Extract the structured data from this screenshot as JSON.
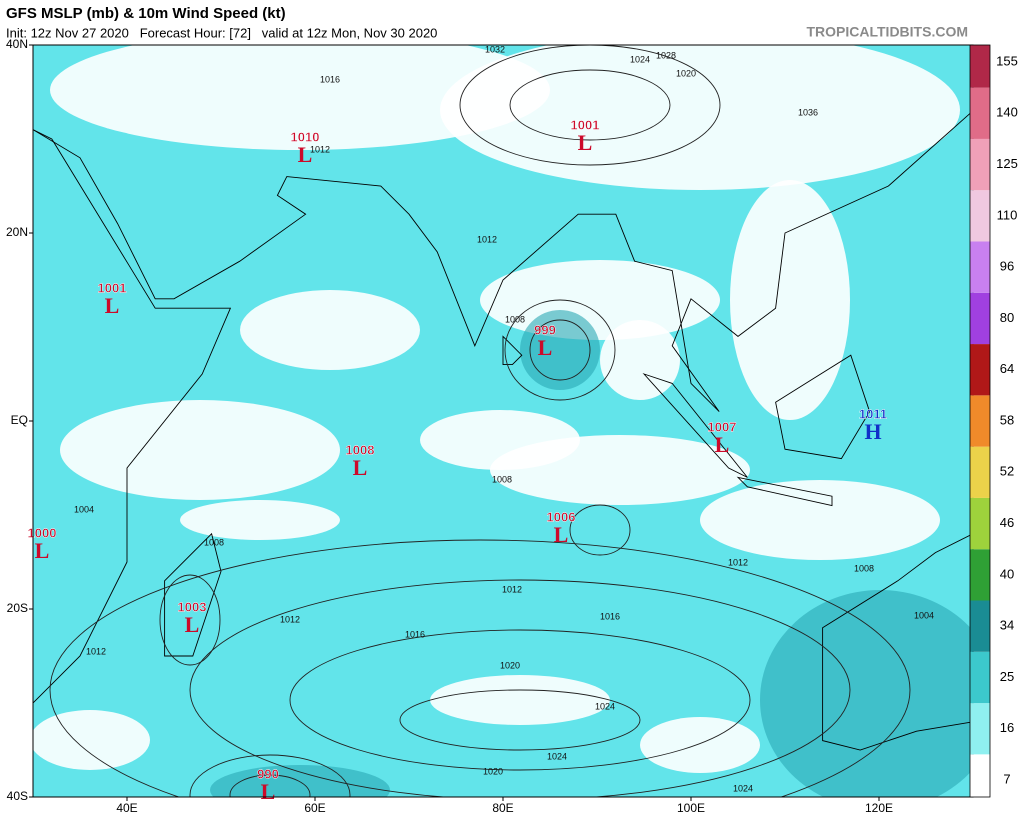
{
  "chart_data": {
    "type": "map",
    "title": "GFS MSLP (mb) & 10m Wind Speed (kt)",
    "subtitle": "Init: 12z Nov 27 2020   Forecast Hour: [72]   valid at 12z Mon, Nov 30 2020",
    "source": "TROPICALTIDBITS.COM",
    "xlim": [
      30,
      130
    ],
    "ylim": [
      -40,
      40
    ],
    "xticks": [
      {
        "value": 40,
        "label": "40E"
      },
      {
        "value": 60,
        "label": "60E"
      },
      {
        "value": 80,
        "label": "80E"
      },
      {
        "value": 100,
        "label": "100E"
      },
      {
        "value": 120,
        "label": "120E"
      }
    ],
    "yticks": [
      {
        "value": 40,
        "label": "40N"
      },
      {
        "value": 20,
        "label": "20N"
      },
      {
        "value": 0,
        "label": "EQ"
      },
      {
        "value": -20,
        "label": "20S"
      },
      {
        "value": -40,
        "label": "40S"
      }
    ],
    "colorbar": {
      "levels": [
        7,
        16,
        25,
        34,
        40,
        46,
        52,
        58,
        64,
        80,
        96,
        110,
        125,
        140,
        155
      ],
      "colors": [
        "#ffffff",
        "#8ff0f0",
        "#3cc8cc",
        "#1a8c94",
        "#2fa035",
        "#9ed23c",
        "#ecd24a",
        "#f08a2a",
        "#b01818",
        "#a040e0",
        "#c880f0",
        "#f0c8e0",
        "#f0a0b8",
        "#e06c88",
        "#b02848"
      ]
    },
    "centers": [
      {
        "pressure": "1010",
        "kind": "L",
        "color": "#cc0a2a"
      },
      {
        "pressure": "1001",
        "kind": "L",
        "color": "#cc0a2a"
      },
      {
        "pressure": "1001",
        "kind": "L",
        "color": "#cc0a2a"
      },
      {
        "pressure": "999",
        "kind": "L",
        "color": "#cc0a2a"
      },
      {
        "pressure": "1008",
        "kind": "L",
        "color": "#cc0a2a"
      },
      {
        "pressure": "1007",
        "kind": "L",
        "color": "#cc0a2a"
      },
      {
        "pressure": "1011",
        "kind": "H",
        "color": "#1030c8"
      },
      {
        "pressure": "1006",
        "kind": "L",
        "color": "#cc0a2a"
      },
      {
        "pressure": "1000",
        "kind": "L",
        "color": "#cc0a2a"
      },
      {
        "pressure": "1003",
        "kind": "L",
        "color": "#cc0a2a"
      },
      {
        "pressure": "990",
        "kind": "L",
        "color": "#cc0a2a"
      }
    ],
    "isobar_labels": [
      "1012",
      "1016",
      "1020",
      "1024",
      "1028",
      "1032",
      "1036",
      "1008",
      "1012",
      "1016",
      "1020",
      "1024",
      "1024",
      "1020",
      "1012",
      "1008",
      "1004",
      "1012",
      "1016",
      "1012",
      "1008",
      "1004",
      "1008",
      "1012",
      "1024"
    ]
  }
}
